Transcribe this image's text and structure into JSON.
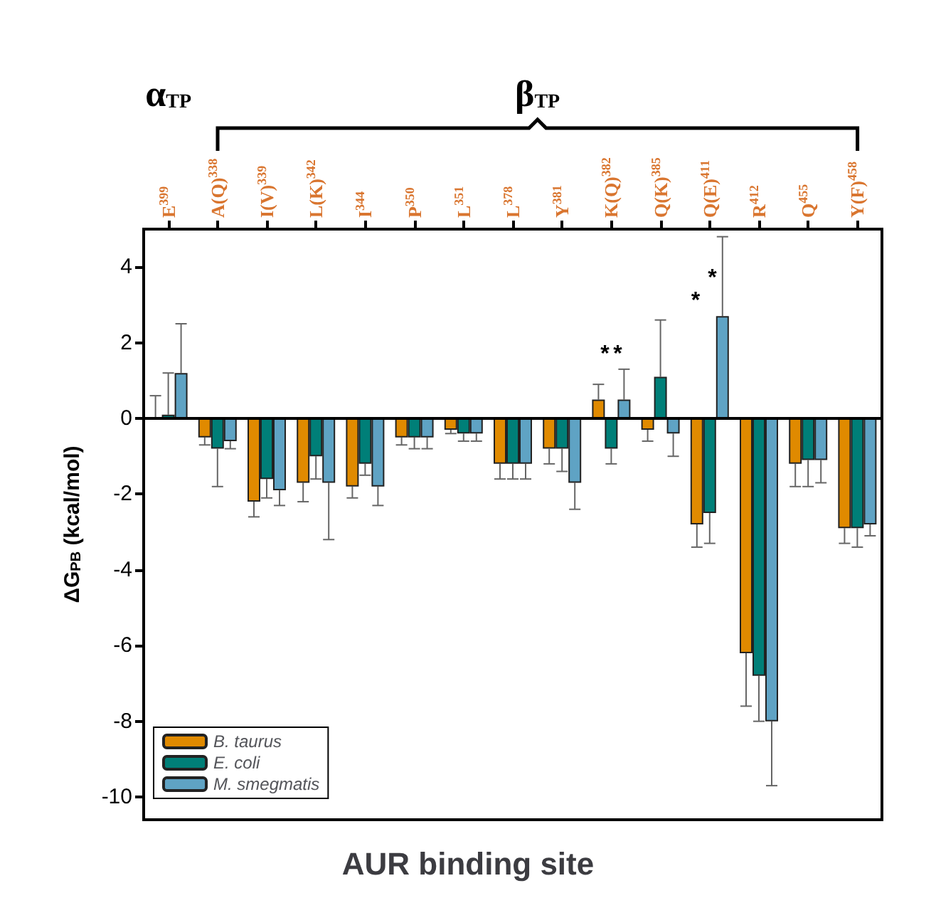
{
  "chart_data": {
    "type": "bar",
    "xlabel": "AUR binding site",
    "ylabel": "ΔG$_{PB}$ (kcal/mol)",
    "categories": [
      "E$^{399}$",
      "A(Q)$^{338}$",
      "I(V)$^{339}$",
      "L(K)$^{342}$",
      "I$^{344}$",
      "P$^{350}$",
      "L$^{351}$",
      "L$^{378}$",
      "Y$^{381}$",
      "K(Q)$^{382}$",
      "Q(K)$^{385}$",
      "Q(E)$^{411}$",
      "R$^{412}$",
      "Q$^{455}$",
      "Y(F)$^{458}$"
    ],
    "series": [
      {
        "name": "B. taurus",
        "color": "#e08a00",
        "values": [
          0,
          -0.5,
          -2.2,
          -1.7,
          -1.8,
          -0.5,
          -0.3,
          -1.2,
          -0.8,
          0.5,
          -0.3,
          -2.8,
          -6.2,
          -1.2,
          -2.9
        ],
        "errors": [
          [
            0,
            0.6
          ],
          [
            -0.7,
            -0.5
          ],
          [
            -2.6,
            -2.2
          ],
          [
            -2.2,
            -1.7
          ],
          [
            -2.1,
            -1.8
          ],
          [
            -0.7,
            -0.5
          ],
          [
            -0.4,
            -0.3
          ],
          [
            -1.6,
            -1.2
          ],
          [
            -1.2,
            -0.8
          ],
          [
            0.5,
            0.9
          ],
          [
            -0.6,
            -0.3
          ],
          [
            -3.4,
            -2.8
          ],
          [
            -7.6,
            -6.2
          ],
          [
            -1.8,
            -1.2
          ],
          [
            -3.3,
            -2.9
          ]
        ]
      },
      {
        "name": "E. coli",
        "color": "#007f78",
        "values": [
          0.1,
          -0.8,
          -1.6,
          -1.0,
          -1.2,
          -0.5,
          -0.4,
          -1.2,
          -0.8,
          -0.8,
          1.1,
          -2.5,
          -6.8,
          -1.1,
          -2.9
        ],
        "errors": [
          [
            0.1,
            1.2
          ],
          [
            -1.8,
            -0.8
          ],
          [
            -2.1,
            -1.6
          ],
          [
            -1.6,
            -1.0
          ],
          [
            -1.5,
            -1.2
          ],
          [
            -0.8,
            -0.5
          ],
          [
            -0.6,
            -0.4
          ],
          [
            -1.6,
            -1.2
          ],
          [
            -1.4,
            -0.8
          ],
          [
            -1.2,
            -0.8
          ],
          [
            1.1,
            2.6
          ],
          [
            -3.3,
            -2.5
          ],
          [
            -8.0,
            -6.8
          ],
          [
            -1.8,
            -1.1
          ],
          [
            -3.4,
            -2.9
          ]
        ]
      },
      {
        "name": "M. smegmatis",
        "color": "#5fa3c4",
        "values": [
          1.2,
          -0.6,
          -1.9,
          -1.7,
          -1.8,
          -0.5,
          -0.4,
          -1.2,
          -1.7,
          0.5,
          -0.4,
          2.7,
          -8.0,
          -1.1,
          -2.8
        ],
        "errors": [
          [
            1.2,
            2.5
          ],
          [
            -0.8,
            -0.6
          ],
          [
            -2.3,
            -1.9
          ],
          [
            -3.2,
            -1.7
          ],
          [
            -2.3,
            -1.8
          ],
          [
            -0.8,
            -0.5
          ],
          [
            -0.6,
            -0.4
          ],
          [
            -1.6,
            -1.2
          ],
          [
            -2.4,
            -1.7
          ],
          [
            0.5,
            1.3
          ],
          [
            -1.0,
            -0.4
          ],
          [
            2.7,
            4.8
          ],
          [
            -9.7,
            -8.0
          ],
          [
            -1.7,
            -1.1
          ],
          [
            -3.1,
            -2.8
          ]
        ]
      }
    ],
    "ylim": [
      -10.6,
      5
    ],
    "yticks": [
      -10,
      -8,
      -6,
      -4,
      -2,
      0,
      2,
      4
    ],
    "legend": "bottom left",
    "ref_lines": [
      {
        "axis": "y",
        "value": 0,
        "color": "#000000"
      }
    ],
    "annotations": [
      "α$_{TP}$",
      "β$_{TP}$",
      "*",
      "*",
      "*",
      "*"
    ]
  }
}
